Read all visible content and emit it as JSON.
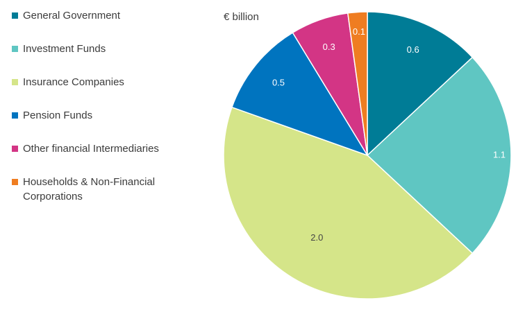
{
  "chart_data": {
    "type": "pie",
    "unit_label": "€ billion",
    "start_angle_deg": 0,
    "direction": "clockwise",
    "slices": [
      {
        "name": "General Government",
        "value": 0.6,
        "label": "0.6",
        "color": "#007c96",
        "label_color": "#ffffff"
      },
      {
        "name": "Investment Funds",
        "value": 1.1,
        "label": "1.1",
        "color": "#5fc6c2",
        "label_color": "#ffffff"
      },
      {
        "name": "Insurance Companies",
        "value": 2.0,
        "label": "2.0",
        "color": "#d5e589",
        "label_color": "#444444"
      },
      {
        "name": "Pension Funds",
        "value": 0.5,
        "label": "0.5",
        "color": "#0074bf",
        "label_color": "#ffffff"
      },
      {
        "name": "Other financial Intermediaries",
        "value": 0.3,
        "label": "0.3",
        "color": "#d33585",
        "label_color": "#ffffff"
      },
      {
        "name": "Households & Non-Financial Corporations",
        "value": 0.1,
        "label": "0.1",
        "color": "#ef7d21",
        "label_color": "#ffffff"
      }
    ],
    "legend": [
      "General Government",
      "Investment Funds",
      "Insurance Companies",
      "Pension Funds",
      "Other financial Intermediaries",
      "Households & Non-Financial Corporations"
    ]
  }
}
